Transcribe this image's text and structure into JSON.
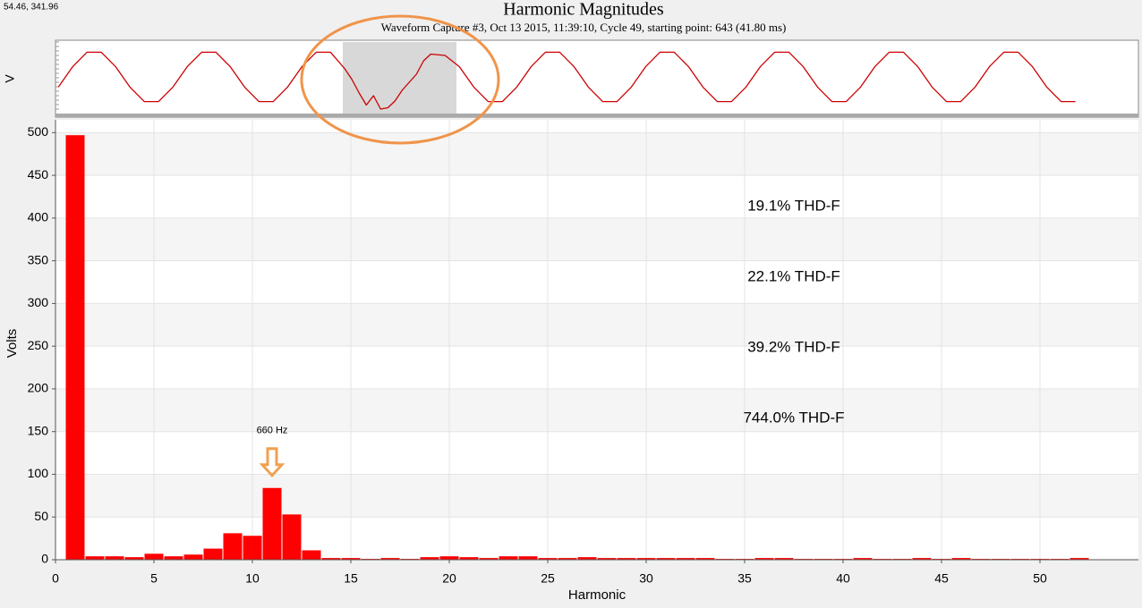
{
  "cursor_readout": "54.46, 341.96",
  "chart_data": [
    {
      "type": "bar",
      "title": "Harmonic Magnitudes",
      "subtitle": "Waveform Capture #3, Oct 13 2015, 11:39:10, Cycle 49,  starting point: 643  (41.80 ms)",
      "x_label": "Harmonic",
      "y_label": "Volts",
      "x": [
        1,
        2,
        3,
        4,
        5,
        6,
        7,
        8,
        9,
        10,
        11,
        12,
        13,
        14,
        15,
        16,
        17,
        18,
        19,
        20,
        21,
        22,
        23,
        24,
        25,
        26,
        27,
        28,
        29,
        30,
        31,
        32,
        33,
        34,
        35,
        36,
        37,
        38,
        39,
        40,
        41,
        42,
        43,
        44,
        45,
        46,
        47,
        48,
        49,
        50,
        51,
        52
      ],
      "values": [
        497,
        4,
        4,
        3,
        7,
        4,
        6,
        13,
        31,
        28,
        84,
        53,
        11,
        2,
        2,
        1,
        2,
        1,
        3,
        4,
        3,
        2,
        4,
        4,
        2,
        2,
        3,
        2,
        2,
        2,
        2,
        2,
        2,
        1,
        1,
        2,
        2,
        1,
        1,
        1,
        2,
        1,
        1,
        2,
        1,
        2,
        1,
        1,
        1,
        1,
        1,
        2
      ],
      "color": "#ff0000",
      "xlim": [
        0,
        55
      ],
      "xticks": [
        0,
        5,
        10,
        15,
        20,
        25,
        30,
        35,
        40,
        45,
        50
      ],
      "ylim": [
        0,
        515
      ],
      "yticks": [
        0,
        50,
        100,
        150,
        200,
        250,
        300,
        350,
        400,
        450,
        500
      ],
      "grid": true,
      "annotations": [
        {
          "text": "19.1% THD-F",
          "color": "#000000"
        },
        {
          "text": "22.1% THD-F",
          "color": "#ff0000"
        },
        {
          "text": "39.2% THD-F",
          "color": "#0000ff"
        },
        {
          "text": "744.0% THD-F",
          "color": "#00dd00"
        }
      ],
      "arrow_label": {
        "text": "660 Hz",
        "color": "#f0a050"
      }
    },
    {
      "type": "line",
      "y_label": "V",
      "x": [
        0,
        1,
        2,
        3,
        4,
        5,
        6,
        7,
        8,
        9,
        10,
        11,
        12,
        13,
        14,
        15,
        16,
        17,
        18,
        19,
        20,
        20.5,
        21,
        21.5,
        22,
        22.5,
        23,
        23.5,
        24,
        24.5,
        25,
        25.5,
        26,
        27,
        28,
        29,
        30,
        31,
        32,
        33,
        34,
        35,
        36,
        37,
        38,
        39,
        40,
        41,
        42,
        43,
        44,
        45,
        46,
        47,
        48,
        49,
        50,
        51,
        52,
        53,
        54,
        55,
        56,
        57,
        58,
        59,
        60,
        61,
        62,
        63,
        64,
        65,
        66,
        67,
        68,
        69,
        70,
        71
      ],
      "values": [
        -0.38,
        0.38,
        0.92,
        0.92,
        0.38,
        -0.38,
        -0.92,
        -0.92,
        -0.38,
        0.38,
        0.92,
        0.92,
        0.38,
        -0.38,
        -0.92,
        -0.92,
        -0.38,
        0.38,
        0.92,
        0.92,
        0.3,
        -0.1,
        -0.6,
        -1.05,
        -0.7,
        -1.2,
        -1.15,
        -0.9,
        -0.5,
        -0.2,
        0.1,
        0.6,
        0.85,
        0.8,
        0.38,
        -0.38,
        -0.92,
        -0.92,
        -0.38,
        0.38,
        0.92,
        0.92,
        0.38,
        -0.38,
        -0.92,
        -0.92,
        -0.38,
        0.38,
        0.92,
        0.92,
        0.38,
        -0.38,
        -0.92,
        -0.92,
        -0.38,
        0.38,
        0.92,
        0.92,
        0.38,
        -0.38,
        -0.92,
        -0.92,
        -0.38,
        0.38,
        0.92,
        0.92,
        0.38,
        -0.38,
        -0.92,
        -0.92,
        -0.38,
        0.38,
        0.92,
        0.92,
        0.38,
        -0.38,
        -0.92,
        -0.92
      ],
      "color": "#cc0000",
      "xlim": [
        -0.2,
        75.4
      ],
      "ylim": [
        -1.3,
        1.3
      ]
    }
  ]
}
